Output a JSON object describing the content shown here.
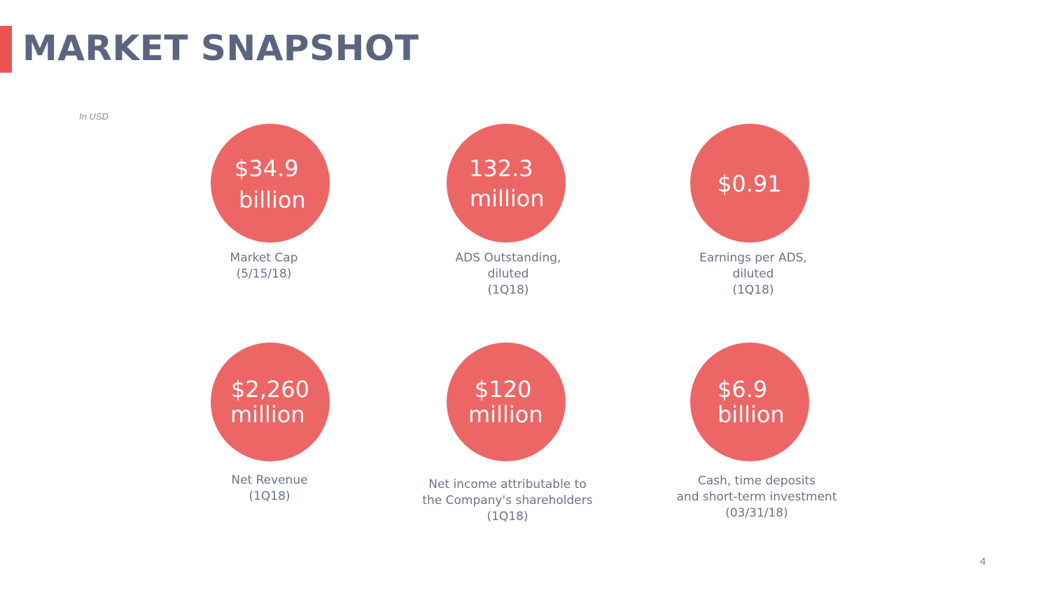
{
  "slide": {
    "title": "MARKET SNAPSHOT",
    "units_note": "In USD",
    "page_number": "4",
    "accent_color": "#e8554e",
    "circle_color": "#ed6666",
    "title_color": "#5b6580"
  },
  "metrics": [
    {
      "value_line1": "$34.9",
      "value_line2": "billion",
      "caption_lines": [
        "Market Cap",
        "(5/15/18)"
      ]
    },
    {
      "value_line1": "132.3",
      "value_line2": "million",
      "caption_lines": [
        "ADS Outstanding,",
        "diluted",
        "(1Q18)"
      ]
    },
    {
      "value_line1": "$0.91",
      "value_line2": "",
      "caption_lines": [
        "Earnings per ADS,",
        "diluted",
        "(1Q18)"
      ]
    },
    {
      "value_line1": "$2,260",
      "value_line2": "million",
      "caption_lines": [
        "Net Revenue",
        "(1Q18)"
      ]
    },
    {
      "value_line1": "$120",
      "value_line2": "million",
      "caption_lines": [
        "Net income attributable to",
        "the Company's shareholders",
        "(1Q18)"
      ]
    },
    {
      "value_line1": "$6.9",
      "value_line2": "billion",
      "caption_lines": [
        "Cash, time deposits",
        "and short-term investment",
        "(03/31/18)"
      ]
    }
  ]
}
